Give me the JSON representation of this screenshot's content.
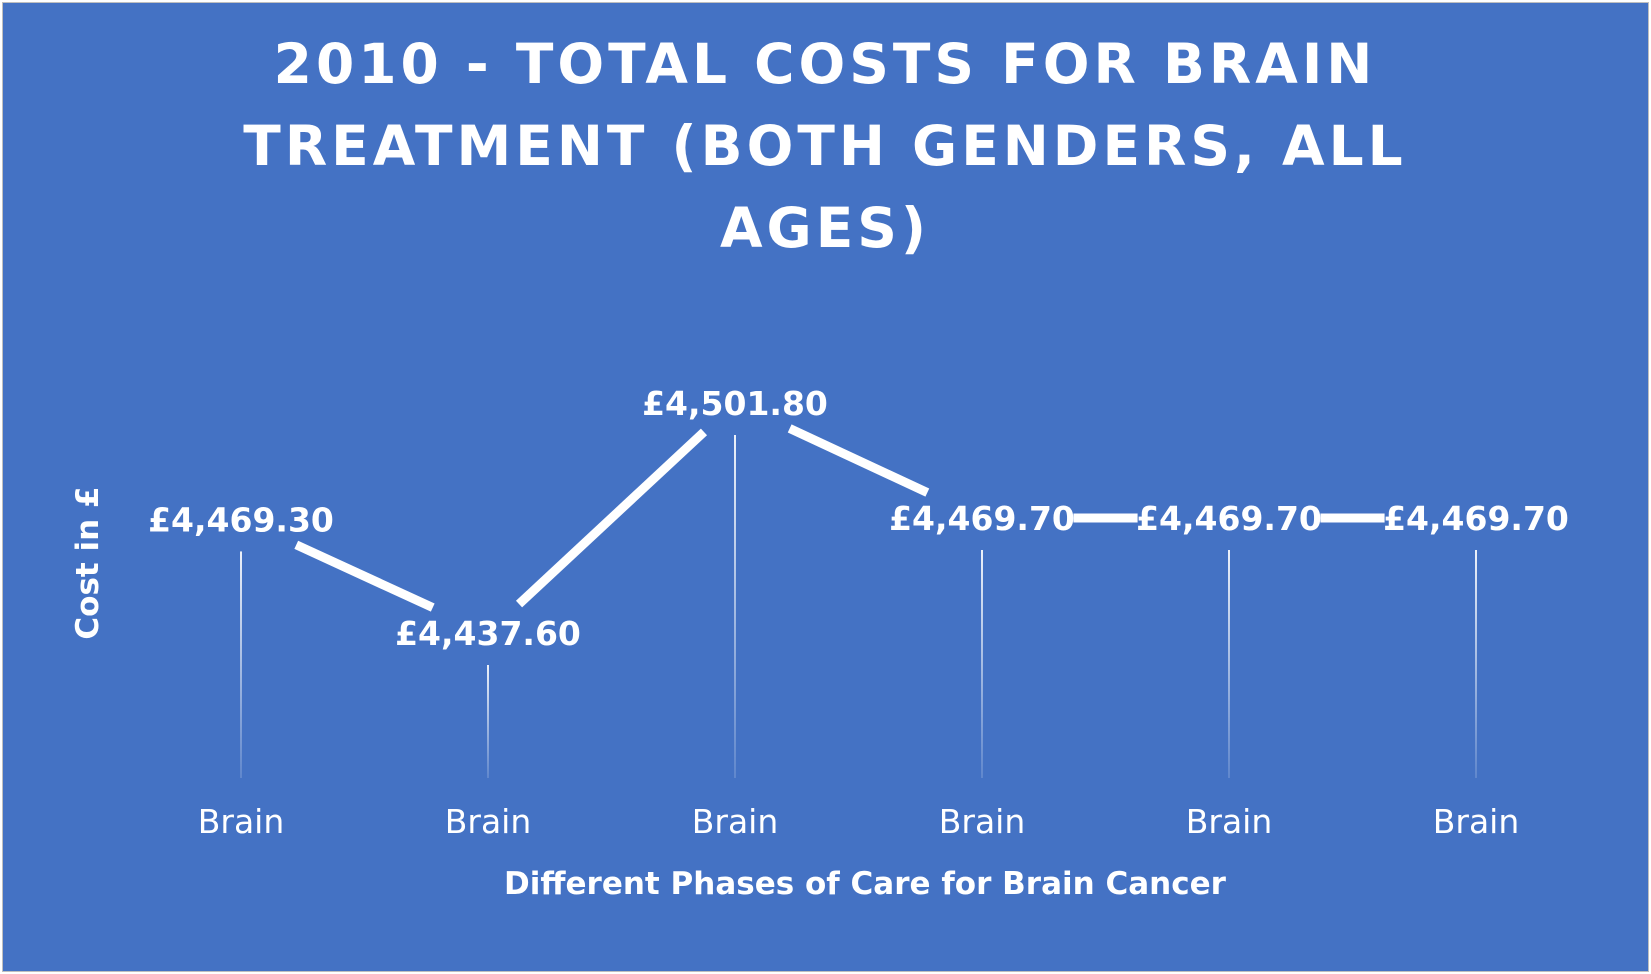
{
  "colors": {
    "background": "#4472c4",
    "foreground": "#ffffff"
  },
  "chart_data": {
    "type": "line",
    "title_lines": [
      "2010 - TOTAL COSTS FOR BRAIN",
      "TREATMENT (BOTH GENDERS, ALL",
      "AGES)"
    ],
    "xlabel": "Different Phases of Care for Brain Cancer",
    "ylabel": "Cost in £",
    "categories": [
      "Brain",
      "Brain",
      "Brain",
      "Brain",
      "Brain",
      "Brain"
    ],
    "series": [
      {
        "values": [
          4469.3,
          4437.6,
          4501.8,
          4469.7,
          4469.7,
          4469.7
        ],
        "labels": [
          "£4,469.30",
          "£4,437.60",
          "£4,501.80",
          "£4,469.70",
          "£4,469.70",
          "£4,469.70"
        ]
      }
    ],
    "drop_lines": true,
    "grid": false,
    "legend": "none"
  }
}
